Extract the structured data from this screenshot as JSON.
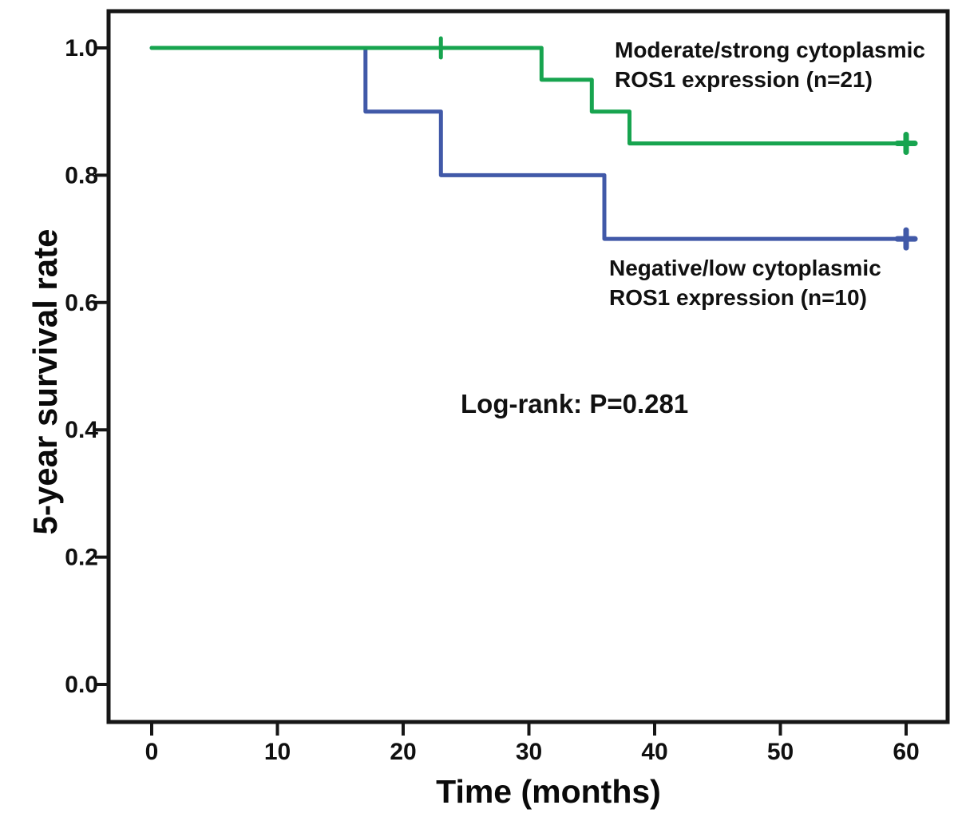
{
  "chart_data": {
    "type": "line",
    "subtype": "kaplan-meier-step",
    "title": "",
    "xlabel": "Time (months)",
    "ylabel": "5-year survival rate",
    "xlim": [
      -3.5,
      63.5
    ],
    "ylim": [
      -0.06,
      1.06
    ],
    "grid": false,
    "legend_position": "inline-labels",
    "xticks": {
      "values": [
        0,
        10,
        20,
        30,
        40,
        50,
        60
      ],
      "labels": [
        "0",
        "10",
        "20",
        "30",
        "40",
        "50",
        "60"
      ]
    },
    "yticks": {
      "values": [
        1.0,
        0.8,
        0.6,
        0.4,
        0.2,
        0.0
      ],
      "labels": [
        "1.0",
        "0.8",
        "0.6",
        "0.4",
        "0.2",
        "0.0"
      ]
    },
    "annotation": {
      "text": "Log-rank: P=0.281"
    },
    "axis_color": "#161616",
    "series": [
      {
        "name": "Moderate/strong cytoplasmic ROS1 expression (n=21)",
        "label": "Moderate/strong cytoplasmic\nROS1 expression (n=21)",
        "color": "#17a44f",
        "steps": [
          [
            0,
            1.0
          ],
          [
            31,
            1.0
          ],
          [
            31,
            0.95
          ],
          [
            35,
            0.95
          ],
          [
            35,
            0.9
          ],
          [
            38,
            0.9
          ],
          [
            38,
            0.85
          ],
          [
            60,
            0.85
          ]
        ],
        "censors": [
          [
            23,
            1.0
          ],
          [
            60,
            0.85
          ]
        ]
      },
      {
        "name": "Negative/low cytoplasmic ROS1 expression (n=10)",
        "label": "Negative/low cytoplasmic\nROS1 expression (n=10)",
        "color": "#4159a8",
        "steps": [
          [
            0,
            1.0
          ],
          [
            17,
            1.0
          ],
          [
            17,
            0.9
          ],
          [
            23,
            0.9
          ],
          [
            23,
            0.8
          ],
          [
            36,
            0.8
          ],
          [
            36,
            0.7
          ],
          [
            60,
            0.7
          ]
        ],
        "censors": [
          [
            60,
            0.7
          ]
        ]
      }
    ]
  }
}
